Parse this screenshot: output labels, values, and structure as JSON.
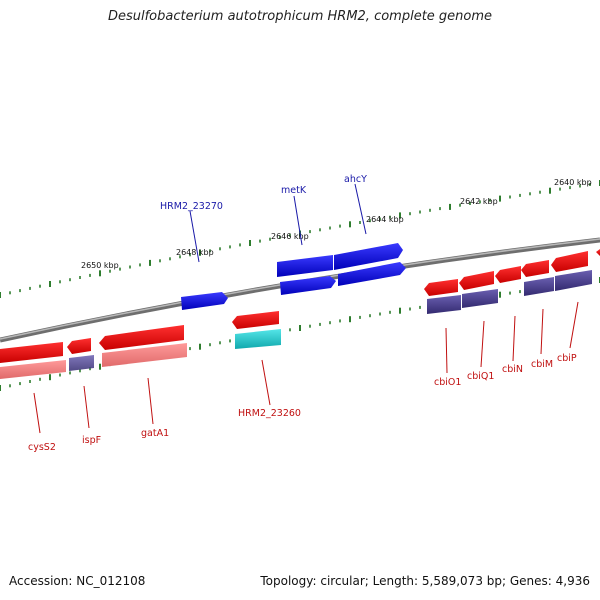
{
  "title": "Desulfobacterium autotrophicum HRM2, complete genome",
  "footer": {
    "accession": "Accession: NC_012108",
    "stats": "Topology: circular; Length: 5,589,073 bp; Genes: 4,936"
  },
  "scale_labels": [
    "2640 kbp",
    "2642 kbp",
    "2644 kbp",
    "2646 kbp",
    "2648 kbp",
    "2650 kbp"
  ],
  "genes_forward": [
    {
      "label": "HRM2_23270",
      "color": "#1a1aa8"
    },
    {
      "label": "metK",
      "color": "#1a1aa8"
    },
    {
      "label": "ahcY",
      "color": "#1a1aa8"
    }
  ],
  "genes_reverse": [
    {
      "label": "cysS2",
      "color": "#c01010"
    },
    {
      "label": "ispF",
      "color": "#c01010"
    },
    {
      "label": "gatA1",
      "color": "#c01010"
    },
    {
      "label": "HRM2_23260",
      "color": "#c01010"
    },
    {
      "label": "cbiO1",
      "color": "#c01010"
    },
    {
      "label": "cbiQ1",
      "color": "#c01010"
    },
    {
      "label": "cbiN",
      "color": "#c01010"
    },
    {
      "label": "cbiM",
      "color": "#c01010"
    },
    {
      "label": "cbiP",
      "color": "#c01010"
    }
  ],
  "colors": {
    "backbone": "#8a8a8a",
    "tick": "#2e7d2e",
    "forward_cds": "#1414e0",
    "reverse_cds": "#ee1111",
    "reverse_cog_pink": "#f08a8a",
    "cog_purple": "#4a3f8c",
    "cog_cyan": "#22c8cc"
  }
}
